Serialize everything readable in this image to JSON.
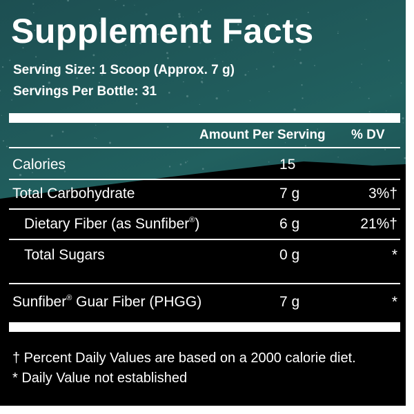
{
  "panel": {
    "title": "Supplement Facts",
    "serving_size": "Serving Size: 1 Scoop (Approx. 7 g)",
    "servings_per": "Servings Per Bottle: 31",
    "colors": {
      "sky": "#1e5659",
      "sky_dark": "#143c3f",
      "ground": "#000000",
      "text": "#ffffff"
    }
  },
  "table": {
    "header_amount": "Amount Per Serving",
    "header_dv": "% DV",
    "rows": [
      {
        "label": "Calories",
        "amount": "15",
        "dv": ""
      },
      {
        "label": "Total Carbohydrate",
        "amount": "7 g",
        "dv": "3%†"
      },
      {
        "label": "Dietary Fiber (as Sunfiber",
        "label_mark": "®",
        "label_end": ")",
        "amount": "6 g",
        "dv": "21%†"
      },
      {
        "label": "Total Sugars",
        "amount": "0 g",
        "dv": "*"
      },
      {
        "label": "Sunfiber",
        "label_mark": "®",
        "label_end": " Guar Fiber (PHGG)",
        "amount": "7 g",
        "dv": "*"
      }
    ]
  },
  "footnotes": {
    "dagger": "† Percent Daily Values are based on a 2000 calorie diet.",
    "star": "* Daily Value not established"
  }
}
